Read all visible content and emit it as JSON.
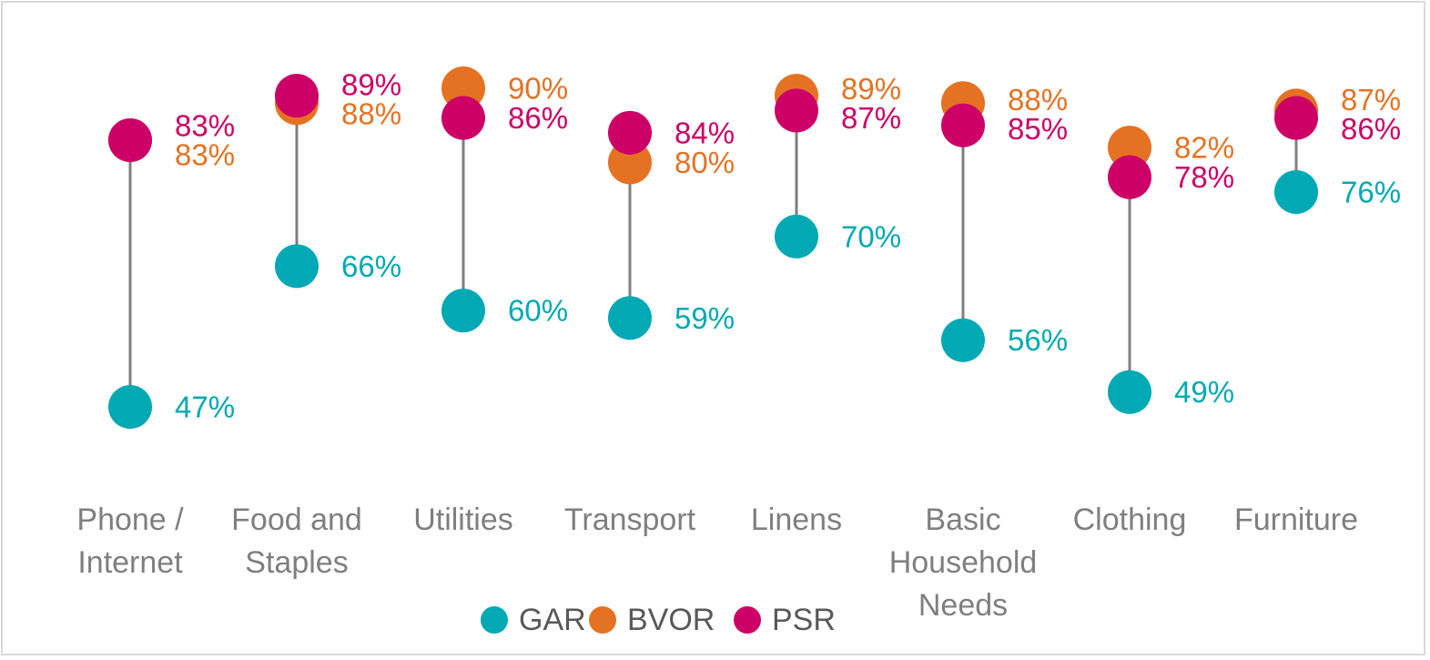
{
  "chart_data": {
    "type": "dot-range",
    "title": "",
    "xlabel": "",
    "ylabel": "",
    "ylim": [
      40,
      95
    ],
    "grid": false,
    "legend_position": "bottom",
    "categories": [
      [
        "Phone /",
        "Internet"
      ],
      [
        "Food and",
        "Staples"
      ],
      [
        "Utilities"
      ],
      [
        "Transport"
      ],
      [
        "Linens"
      ],
      [
        "Basic",
        "Household",
        "Needs"
      ],
      [
        "Clothing"
      ],
      [
        "Furniture"
      ]
    ],
    "series": [
      {
        "name": "GAR",
        "color": "#00a9b4",
        "values": [
          47,
          66,
          60,
          59,
          70,
          56,
          49,
          76
        ],
        "labels": [
          "47%",
          "66%",
          "60%",
          "59%",
          "70%",
          "56%",
          "49%",
          "76%"
        ]
      },
      {
        "name": "BVOR",
        "color": "#e57223",
        "values": [
          83,
          88,
          90,
          80,
          89,
          88,
          82,
          87
        ],
        "labels": [
          "83%",
          "88%",
          "90%",
          "80%",
          "89%",
          "88%",
          "82%",
          "87%"
        ]
      },
      {
        "name": "PSR",
        "color": "#cc0066",
        "values": [
          83,
          89,
          86,
          84,
          87,
          85,
          78,
          86
        ],
        "labels": [
          "83%",
          "89%",
          "86%",
          "84%",
          "87%",
          "85%",
          "78%",
          "86%"
        ]
      }
    ]
  },
  "colors": {
    "connector": "#7f7f7f",
    "category_text": "#7f7f7f",
    "legend_text": "#595959"
  }
}
